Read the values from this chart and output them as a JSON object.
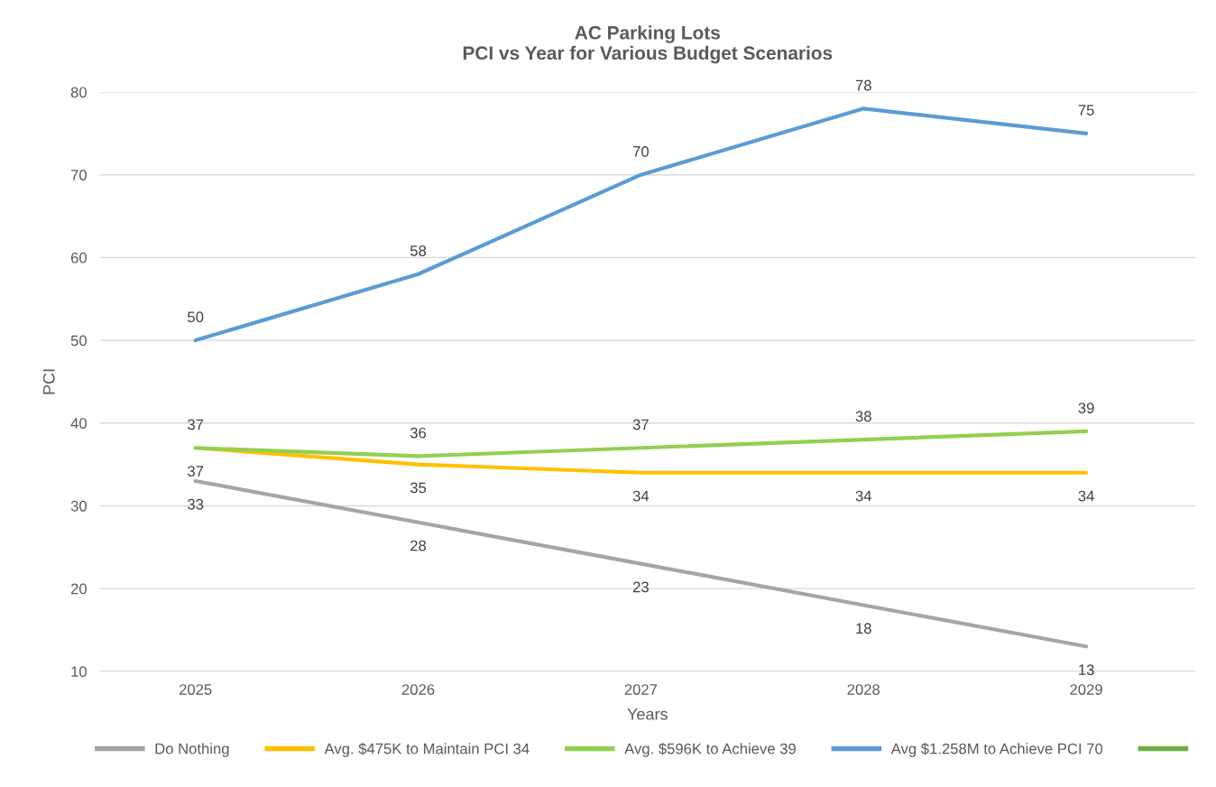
{
  "chart_data": {
    "type": "line",
    "title": "AC Parking Lots\nPCI vs Year for Various Budget Scenarios",
    "xlabel": "Years",
    "ylabel": "PCI",
    "categories": [
      "2025",
      "2026",
      "2027",
      "2028",
      "2029"
    ],
    "series": [
      {
        "name": "Do Nothing",
        "color": "#a5a5a5",
        "values": [
          33,
          28,
          23,
          18,
          13
        ]
      },
      {
        "name": "Avg. $475K to Maintain PCI 34",
        "color": "#ffc000",
        "values": [
          37,
          35,
          34,
          34,
          34
        ]
      },
      {
        "name": "Avg. $596K to Achieve 39",
        "color": "#92d050",
        "values": [
          37,
          36,
          37,
          38,
          39
        ]
      },
      {
        "name": "Avg $1.258M to Achieve PCI 70",
        "color": "#5b9bd5",
        "values": [
          50,
          58,
          70,
          78,
          75
        ]
      },
      {
        "color": "#70ad47",
        "values": [
          null,
          null,
          null,
          null,
          null
        ]
      }
    ],
    "ylim": [
      10,
      80
    ],
    "yticks": [
      10,
      20,
      30,
      40,
      50,
      60,
      70,
      80
    ],
    "grid": "y",
    "legend": "bottom",
    "data_labels": true,
    "marker": "none",
    "line_style": "solid"
  }
}
